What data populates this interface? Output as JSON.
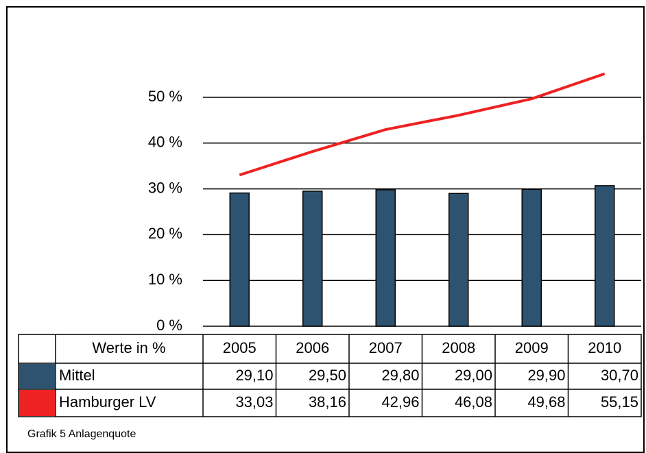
{
  "chart_data": {
    "type": "bar-line",
    "categories": [
      "2005",
      "2006",
      "2007",
      "2008",
      "2009",
      "2010"
    ],
    "series": [
      {
        "name": "Mittel",
        "type": "bar",
        "color": "#2e5370",
        "values": [
          29.1,
          29.5,
          29.8,
          29.0,
          29.9,
          30.7
        ],
        "value_labels": [
          "29,10",
          "29,50",
          "29,80",
          "29,00",
          "29,90",
          "30,70"
        ]
      },
      {
        "name": "Hamburger LV",
        "type": "line",
        "color": "#ee2222",
        "values": [
          33.03,
          38.16,
          42.96,
          46.08,
          49.68,
          55.15
        ],
        "value_labels": [
          "33,03",
          "38,16",
          "42,96",
          "46,08",
          "49,68",
          "55,15"
        ]
      }
    ],
    "ylim": [
      0,
      60
    ],
    "yticks": [
      {
        "value": 0,
        "label": "0 %"
      },
      {
        "value": 10,
        "label": "10 %"
      },
      {
        "value": 20,
        "label": "20 %"
      },
      {
        "value": 30,
        "label": "30 %"
      },
      {
        "value": 40,
        "label": "40 %"
      },
      {
        "value": 50,
        "label": "50 %"
      }
    ],
    "grid": true,
    "table_header": "Werte in %",
    "caption": "Grafik 5 Anlagenquote"
  }
}
